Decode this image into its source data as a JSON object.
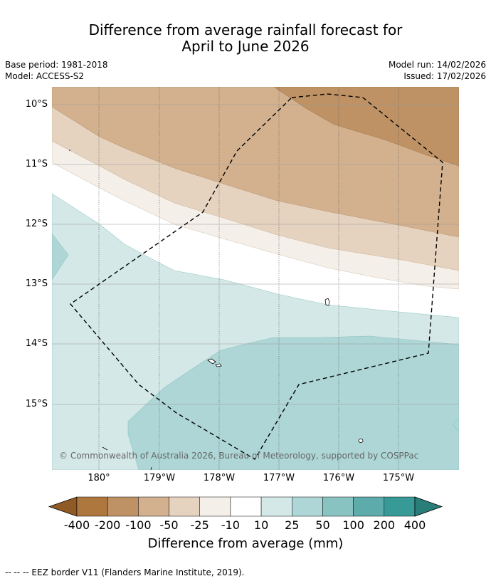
{
  "title": {
    "line1": "Difference from average rainfall forecast for",
    "line2": "April to June 2026"
  },
  "meta": {
    "base_period": "Base period: 1981-2018",
    "model": "Model: ACCESS-S2",
    "model_run": "Model run: 14/02/2026",
    "issued": "Issued: 17/02/2026"
  },
  "map": {
    "latitude_labels": [
      "10°S",
      "11°S",
      "12°S",
      "13°S",
      "14°S",
      "15°S"
    ],
    "longitude_labels": [
      "180°",
      "179°W",
      "178°W",
      "177°W",
      "176°W",
      "175°W"
    ],
    "copyright": "© Commonwealth of Australia 2026, Bureau of Meteorology, supported by COSPPac",
    "colors": {
      "brown_200": "#be9264",
      "brown_100": "#d3b18f",
      "brown_50": "#e5d3c0",
      "brown_25": "#f4efe9",
      "neutral": "#ffffff",
      "teal_10": "#d4e8e7",
      "teal_25": "#aed6d6",
      "coast": "#000000"
    }
  },
  "colorbar": {
    "ticks": [
      "-400",
      "-200",
      "-100",
      "-50",
      "-25",
      "-10",
      "10",
      "25",
      "50",
      "100",
      "200",
      "400"
    ],
    "colors": [
      "#8f5a26",
      "#ad773d",
      "#be9264",
      "#d3b18f",
      "#e5d3c0",
      "#f4efe9",
      "#ffffff",
      "#d4e8e7",
      "#aed6d6",
      "#88c2c1",
      "#5eabac",
      "#379a97",
      "#2a7e7a"
    ],
    "label": "Difference from average (mm)"
  },
  "footnote": "--  --  -- EEZ border V11 (Flanders Marine Institute, 2019)."
}
